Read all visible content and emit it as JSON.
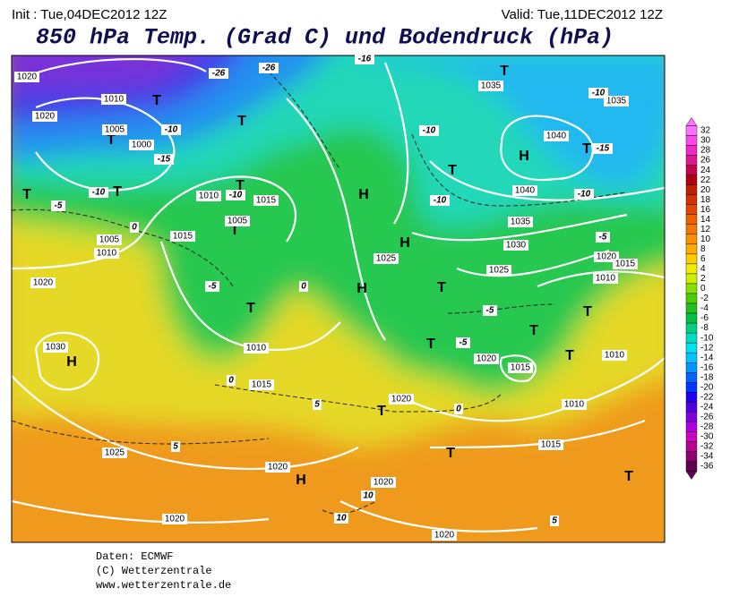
{
  "header": {
    "init": "Init : Tue,04DEC2012 12Z",
    "valid": "Valid: Tue,11DEC2012 12Z",
    "title": "850 hPa Temp. (Grad C) und Bodendruck (hPa)"
  },
  "colorbar": {
    "ticks": [
      32,
      30,
      28,
      26,
      24,
      22,
      20,
      18,
      16,
      14,
      12,
      10,
      8,
      6,
      4,
      2,
      0,
      -2,
      -4,
      -6,
      -8,
      -10,
      -12,
      -14,
      -16,
      -18,
      -20,
      -22,
      -24,
      -26,
      -28,
      -30,
      -32,
      -34,
      -36
    ],
    "colors": [
      "#ff70ff",
      "#ff48e8",
      "#f028c8",
      "#e01890",
      "#c80050",
      "#b00010",
      "#c02000",
      "#d03400",
      "#e04800",
      "#ec6000",
      "#f47800",
      "#fc9000",
      "#ffac00",
      "#ffcc00",
      "#f4ec00",
      "#c8f000",
      "#88e000",
      "#48d000",
      "#20c020",
      "#00c040",
      "#00d080",
      "#00dcc0",
      "#00e0f0",
      "#00c4ff",
      "#0094ff",
      "#0064ff",
      "#0034ff",
      "#2000f0",
      "#5000e0",
      "#8000e0",
      "#b000e0",
      "#d000c0",
      "#b80090",
      "#900070",
      "#600050"
    ]
  },
  "map": {
    "centers": [
      "H",
      "H",
      "H",
      "H",
      "H",
      "H",
      "T",
      "T",
      "T",
      "T",
      "T",
      "T",
      "T",
      "T",
      "T",
      "T",
      "T",
      "T",
      "T",
      "T",
      "T",
      "T",
      "T",
      "T",
      "T"
    ],
    "isobar_labels": [
      "1020",
      "1010",
      "1020",
      "1005",
      "1000",
      "1015",
      "1005",
      "1010",
      "1015",
      "1010",
      "1020",
      "1030",
      "1010",
      "1015",
      "1025",
      "1020",
      "1020",
      "1020",
      "1015",
      "1010",
      "1020",
      "1015",
      "1025",
      "1030",
      "1035",
      "1040",
      "1040",
      "1035",
      "1035",
      "1025",
      "1020",
      "1020",
      "1015",
      "1010",
      "1010",
      "1020",
      "1005"
    ],
    "temp_labels": [
      "-26",
      "-26",
      "-16",
      "-10",
      "-15",
      "-10",
      "-10",
      "-5",
      "0",
      "-5",
      "0",
      "-10",
      "-10",
      "-10",
      "-15",
      "-10",
      "-5",
      "-5",
      "-5",
      "0",
      "5",
      "5",
      "0",
      "5",
      "10",
      "10"
    ]
  },
  "footer": [
    "Daten: ECMWF",
    "(C) Wetterzentrale",
    "www.wetterzentrale.de"
  ]
}
